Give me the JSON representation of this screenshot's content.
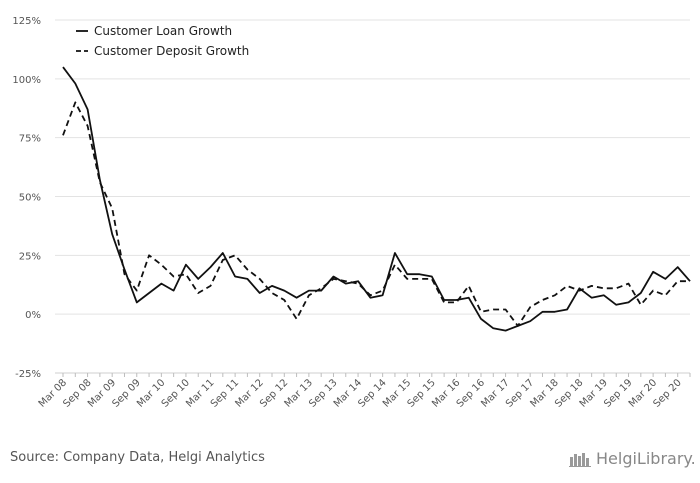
{
  "chart_data": {
    "type": "line",
    "title": "",
    "xlabel": "",
    "ylabel": "",
    "ylim": [
      -25,
      125
    ],
    "yticks": [
      -25,
      0,
      25,
      50,
      75,
      100,
      125
    ],
    "ytick_labels": [
      "-25%",
      "0%",
      "25%",
      "50%",
      "75%",
      "100%",
      "125%"
    ],
    "y_unit": "%",
    "grid": "horizontal",
    "legend_position": "top-left",
    "x_tick_labels": [
      "Mar 08",
      "Sep 08",
      "Mar 09",
      "Sep 09",
      "Mar 10",
      "Sep 10",
      "Mar 11",
      "Sep 11",
      "Mar 12",
      "Sep 12",
      "Mar 13",
      "Sep 13",
      "Mar 14",
      "Sep 14",
      "Mar 15",
      "Sep 15",
      "Mar 16",
      "Sep 16",
      "Mar 17",
      "Sep 17",
      "Mar 18",
      "Sep 18",
      "Mar 19",
      "Sep 19",
      "Mar 20",
      "Sep 20"
    ],
    "x": [
      "Mar 08",
      "Jun 08",
      "Sep 08",
      "Dec 08",
      "Mar 09",
      "Jun 09",
      "Sep 09",
      "Dec 09",
      "Mar 10",
      "Jun 10",
      "Sep 10",
      "Dec 10",
      "Mar 11",
      "Jun 11",
      "Sep 11",
      "Dec 11",
      "Mar 12",
      "Jun 12",
      "Sep 12",
      "Dec 12",
      "Mar 13",
      "Jun 13",
      "Sep 13",
      "Dec 13",
      "Mar 14",
      "Jun 14",
      "Sep 14",
      "Dec 14",
      "Mar 15",
      "Jun 15",
      "Sep 15",
      "Dec 15",
      "Mar 16",
      "Jun 16",
      "Sep 16",
      "Dec 16",
      "Mar 17",
      "Jun 17",
      "Sep 17",
      "Dec 17",
      "Mar 18",
      "Jun 18",
      "Sep 18",
      "Dec 18",
      "Mar 19",
      "Jun 19",
      "Sep 19",
      "Dec 19",
      "Mar 20",
      "Jun 20",
      "Sep 20",
      "Dec 20"
    ],
    "series": [
      {
        "name": "Customer Loan Growth",
        "style": "solid",
        "color": "#111111",
        "values": [
          105,
          98,
          87,
          57,
          34,
          19,
          5,
          9,
          13,
          10,
          21,
          15,
          20,
          26,
          16,
          15,
          9,
          12,
          10,
          7,
          10,
          10,
          16,
          13,
          14,
          7,
          8,
          26,
          17,
          17,
          16,
          6,
          6,
          7,
          -2,
          -6,
          -7,
          -5,
          -3,
          1,
          1,
          2,
          11,
          7,
          8,
          4,
          5,
          9,
          18,
          15,
          20,
          14
        ]
      },
      {
        "name": "Customer Deposit Growth",
        "style": "dashed",
        "color": "#111111",
        "values": [
          76,
          90,
          80,
          56,
          45,
          17,
          10,
          25,
          21,
          16,
          17,
          9,
          12,
          23,
          25,
          19,
          15,
          9,
          6,
          -2,
          8,
          11,
          15,
          14,
          13,
          8,
          10,
          21,
          15,
          15,
          15,
          5,
          5,
          12,
          1,
          2,
          2,
          -5,
          3,
          6,
          8,
          12,
          10,
          12,
          11,
          11,
          13,
          4,
          10,
          8,
          14,
          14
        ]
      }
    ]
  },
  "footer": {
    "source": "Source: Company Data, Helgi Analytics",
    "brand": "HelgiLibrary."
  }
}
